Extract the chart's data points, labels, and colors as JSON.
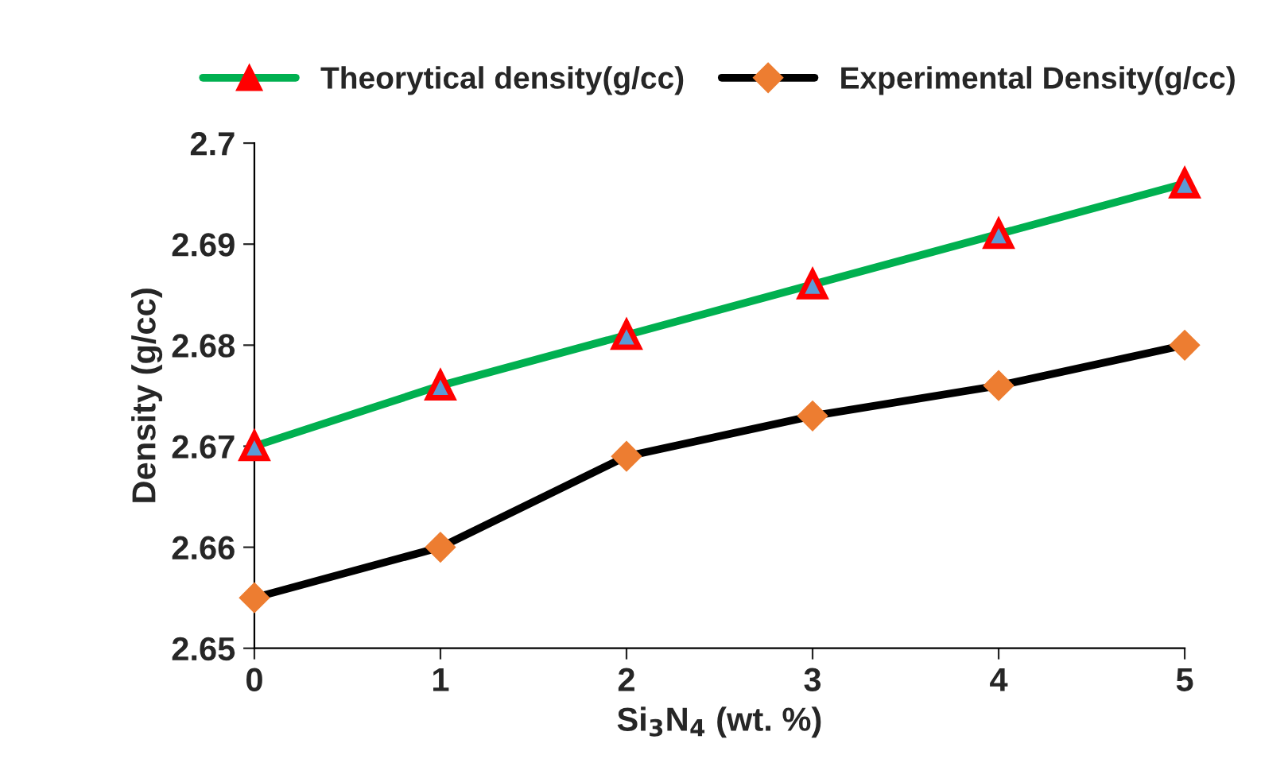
{
  "chart_data": {
    "type": "line",
    "xlabel": "Si$_{3}$N$_{4}$ (wt. %)",
    "ylabel": "Density (g/cc)",
    "x": [
      0,
      1,
      2,
      3,
      4,
      5
    ],
    "series": [
      {
        "name": "Theorytical density(g/cc)",
        "color": "#00b050",
        "marker": "triangle",
        "colors": [
          "#ff0000",
          "#ff0000",
          "#ff0000",
          "#ff0000",
          "#ff0000",
          "#ff0000"
        ],
        "values": [
          2.67,
          2.676,
          2.681,
          2.686,
          2.691,
          2.696
        ]
      },
      {
        "name": "Experimental Density(g/cc)",
        "color": "#000000",
        "marker": "diamond",
        "colors": [
          "#ed7d31",
          "#ed7d31",
          "#ed7d31",
          "#ed7d31",
          "#ed7d31",
          "#ed7d31"
        ],
        "values": [
          2.655,
          2.66,
          2.669,
          2.673,
          2.676,
          2.68
        ]
      }
    ],
    "xlim": [
      0,
      5
    ],
    "xticks": [
      0,
      1,
      2,
      3,
      4,
      5
    ],
    "ylim": [
      2.65,
      2.7
    ],
    "yticks": [
      2.65,
      2.66,
      2.67,
      2.68,
      2.69,
      2.7
    ],
    "grid": false,
    "legend": "top",
    "line_style": "solid"
  }
}
